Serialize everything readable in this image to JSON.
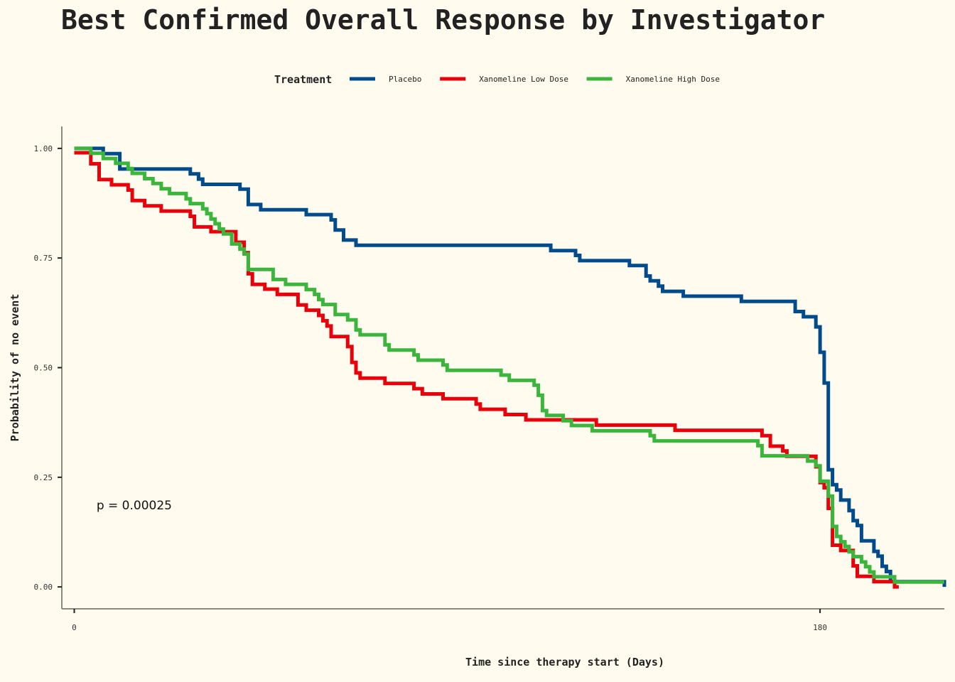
{
  "chart_data": {
    "type": "line",
    "title": "Best Confirmed Overall Response by Investigator",
    "xlabel": "Time since therapy start (Days)",
    "ylabel": "Probability of no event",
    "xlim": [
      -3,
      210
    ],
    "ylim": [
      -0.05,
      1.05
    ],
    "x_ticks": [
      0,
      180
    ],
    "y_ticks": [
      0.0,
      0.25,
      0.5,
      0.75,
      1.0
    ],
    "y_tick_labels": [
      "0.00",
      "0.25",
      "0.50",
      "0.75",
      "1.00"
    ],
    "legend": {
      "title": "Treatment",
      "position": "top"
    },
    "annotation": {
      "text": "p = 0.00025",
      "x": 4,
      "y": 0.19
    },
    "grid": false,
    "series": [
      {
        "name": "Placebo",
        "color": "#004b8c",
        "points": [
          [
            0,
            1.0
          ],
          [
            7,
            1.0
          ],
          [
            7,
            0.988
          ],
          [
            11,
            0.988
          ],
          [
            11,
            0.953
          ],
          [
            28,
            0.953
          ],
          [
            28,
            0.942
          ],
          [
            30,
            0.942
          ],
          [
            30,
            0.93
          ],
          [
            31,
            0.93
          ],
          [
            31,
            0.918
          ],
          [
            40,
            0.918
          ],
          [
            40,
            0.907
          ],
          [
            42,
            0.907
          ],
          [
            42,
            0.872
          ],
          [
            45,
            0.872
          ],
          [
            45,
            0.86
          ],
          [
            56,
            0.86
          ],
          [
            56,
            0.849
          ],
          [
            62,
            0.849
          ],
          [
            62,
            0.837
          ],
          [
            63,
            0.837
          ],
          [
            63,
            0.814
          ],
          [
            65,
            0.814
          ],
          [
            65,
            0.791
          ],
          [
            68,
            0.791
          ],
          [
            68,
            0.779
          ],
          [
            115,
            0.779
          ],
          [
            115,
            0.767
          ],
          [
            121,
            0.767
          ],
          [
            121,
            0.756
          ],
          [
            122,
            0.756
          ],
          [
            122,
            0.744
          ],
          [
            134,
            0.744
          ],
          [
            134,
            0.733
          ],
          [
            138,
            0.733
          ],
          [
            138,
            0.709
          ],
          [
            139,
            0.709
          ],
          [
            139,
            0.698
          ],
          [
            141,
            0.698
          ],
          [
            141,
            0.686
          ],
          [
            142,
            0.686
          ],
          [
            142,
            0.674
          ],
          [
            147,
            0.674
          ],
          [
            147,
            0.663
          ],
          [
            161,
            0.663
          ],
          [
            161,
            0.651
          ],
          [
            174,
            0.651
          ],
          [
            174,
            0.628
          ],
          [
            176,
            0.628
          ],
          [
            176,
            0.616
          ],
          [
            179,
            0.616
          ],
          [
            179,
            0.593
          ],
          [
            180,
            0.593
          ],
          [
            180,
            0.535
          ],
          [
            181,
            0.535
          ],
          [
            181,
            0.465
          ],
          [
            182,
            0.465
          ],
          [
            182,
            0.267
          ],
          [
            183,
            0.267
          ],
          [
            183,
            0.233
          ],
          [
            184,
            0.233
          ],
          [
            184,
            0.221
          ],
          [
            185,
            0.221
          ],
          [
            185,
            0.198
          ],
          [
            187,
            0.198
          ],
          [
            187,
            0.174
          ],
          [
            188,
            0.174
          ],
          [
            188,
            0.151
          ],
          [
            189,
            0.151
          ],
          [
            189,
            0.14
          ],
          [
            190,
            0.14
          ],
          [
            190,
            0.105
          ],
          [
            193,
            0.105
          ],
          [
            193,
            0.081
          ],
          [
            194,
            0.081
          ],
          [
            194,
            0.07
          ],
          [
            195,
            0.07
          ],
          [
            195,
            0.047
          ],
          [
            196,
            0.047
          ],
          [
            196,
            0.035
          ],
          [
            197,
            0.035
          ],
          [
            197,
            0.012
          ],
          [
            210,
            0.012
          ],
          [
            210,
            0.0
          ]
        ]
      },
      {
        "name": "Xanomeline Low Dose",
        "color": "#e8000b",
        "points": [
          [
            0,
            0.99
          ],
          [
            4,
            0.99
          ],
          [
            4,
            0.965
          ],
          [
            6,
            0.965
          ],
          [
            6,
            0.929
          ],
          [
            9,
            0.929
          ],
          [
            9,
            0.917
          ],
          [
            13,
            0.917
          ],
          [
            13,
            0.905
          ],
          [
            14,
            0.905
          ],
          [
            14,
            0.881
          ],
          [
            17,
            0.881
          ],
          [
            17,
            0.869
          ],
          [
            21,
            0.869
          ],
          [
            21,
            0.857
          ],
          [
            28,
            0.857
          ],
          [
            28,
            0.845
          ],
          [
            29,
            0.845
          ],
          [
            29,
            0.821
          ],
          [
            33,
            0.821
          ],
          [
            33,
            0.81
          ],
          [
            39,
            0.81
          ],
          [
            39,
            0.786
          ],
          [
            41,
            0.786
          ],
          [
            41,
            0.762
          ],
          [
            42,
            0.762
          ],
          [
            42,
            0.714
          ],
          [
            43,
            0.714
          ],
          [
            43,
            0.69
          ],
          [
            46,
            0.69
          ],
          [
            46,
            0.679
          ],
          [
            49,
            0.679
          ],
          [
            49,
            0.667
          ],
          [
            54,
            0.667
          ],
          [
            54,
            0.643
          ],
          [
            56,
            0.643
          ],
          [
            56,
            0.631
          ],
          [
            59,
            0.631
          ],
          [
            59,
            0.619
          ],
          [
            60,
            0.619
          ],
          [
            60,
            0.607
          ],
          [
            61,
            0.607
          ],
          [
            61,
            0.595
          ],
          [
            62,
            0.595
          ],
          [
            62,
            0.571
          ],
          [
            66,
            0.571
          ],
          [
            66,
            0.548
          ],
          [
            67,
            0.548
          ],
          [
            67,
            0.512
          ],
          [
            68,
            0.512
          ],
          [
            68,
            0.488
          ],
          [
            69,
            0.488
          ],
          [
            69,
            0.476
          ],
          [
            75,
            0.476
          ],
          [
            75,
            0.464
          ],
          [
            82,
            0.464
          ],
          [
            82,
            0.452
          ],
          [
            84,
            0.452
          ],
          [
            84,
            0.44
          ],
          [
            89,
            0.44
          ],
          [
            89,
            0.429
          ],
          [
            97,
            0.429
          ],
          [
            97,
            0.417
          ],
          [
            98,
            0.417
          ],
          [
            98,
            0.405
          ],
          [
            104,
            0.405
          ],
          [
            104,
            0.393
          ],
          [
            109,
            0.393
          ],
          [
            109,
            0.381
          ],
          [
            126,
            0.381
          ],
          [
            126,
            0.369
          ],
          [
            145,
            0.369
          ],
          [
            145,
            0.357
          ],
          [
            166,
            0.357
          ],
          [
            166,
            0.345
          ],
          [
            168,
            0.345
          ],
          [
            168,
            0.321
          ],
          [
            171,
            0.321
          ],
          [
            171,
            0.31
          ],
          [
            172,
            0.31
          ],
          [
            172,
            0.298
          ],
          [
            179,
            0.298
          ],
          [
            179,
            0.274
          ],
          [
            180,
            0.274
          ],
          [
            180,
            0.238
          ],
          [
            181,
            0.238
          ],
          [
            181,
            0.226
          ],
          [
            182,
            0.226
          ],
          [
            182,
            0.179
          ],
          [
            183,
            0.179
          ],
          [
            183,
            0.095
          ],
          [
            185,
            0.095
          ],
          [
            185,
            0.083
          ],
          [
            188,
            0.083
          ],
          [
            188,
            0.048
          ],
          [
            189,
            0.048
          ],
          [
            189,
            0.024
          ],
          [
            193,
            0.024
          ],
          [
            193,
            0.012
          ],
          [
            198,
            0.012
          ],
          [
            198,
            0.0
          ],
          [
            199,
            0.0
          ]
        ]
      },
      {
        "name": "Xanomeline High Dose",
        "color": "#3cb53c",
        "points": [
          [
            0,
            1.0
          ],
          [
            4,
            1.0
          ],
          [
            4,
            0.989
          ],
          [
            7,
            0.989
          ],
          [
            7,
            0.977
          ],
          [
            10,
            0.977
          ],
          [
            10,
            0.966
          ],
          [
            13,
            0.966
          ],
          [
            13,
            0.954
          ],
          [
            14,
            0.954
          ],
          [
            14,
            0.943
          ],
          [
            17,
            0.943
          ],
          [
            17,
            0.931
          ],
          [
            19,
            0.931
          ],
          [
            19,
            0.92
          ],
          [
            21,
            0.92
          ],
          [
            21,
            0.908
          ],
          [
            23,
            0.908
          ],
          [
            23,
            0.897
          ],
          [
            27,
            0.897
          ],
          [
            27,
            0.885
          ],
          [
            28,
            0.885
          ],
          [
            28,
            0.874
          ],
          [
            31,
            0.874
          ],
          [
            31,
            0.862
          ],
          [
            32,
            0.862
          ],
          [
            32,
            0.851
          ],
          [
            33,
            0.851
          ],
          [
            33,
            0.839
          ],
          [
            34,
            0.839
          ],
          [
            34,
            0.828
          ],
          [
            35,
            0.828
          ],
          [
            35,
            0.816
          ],
          [
            36,
            0.816
          ],
          [
            36,
            0.805
          ],
          [
            38,
            0.805
          ],
          [
            38,
            0.782
          ],
          [
            40,
            0.782
          ],
          [
            40,
            0.77
          ],
          [
            41,
            0.77
          ],
          [
            41,
            0.759
          ],
          [
            42,
            0.759
          ],
          [
            42,
            0.724
          ],
          [
            48,
            0.724
          ],
          [
            48,
            0.701
          ],
          [
            51,
            0.701
          ],
          [
            51,
            0.69
          ],
          [
            56,
            0.69
          ],
          [
            56,
            0.678
          ],
          [
            58,
            0.678
          ],
          [
            58,
            0.667
          ],
          [
            59,
            0.667
          ],
          [
            59,
            0.655
          ],
          [
            60,
            0.655
          ],
          [
            60,
            0.644
          ],
          [
            63,
            0.644
          ],
          [
            63,
            0.621
          ],
          [
            66,
            0.621
          ],
          [
            66,
            0.609
          ],
          [
            68,
            0.609
          ],
          [
            68,
            0.586
          ],
          [
            69,
            0.586
          ],
          [
            69,
            0.575
          ],
          [
            75,
            0.575
          ],
          [
            75,
            0.552
          ],
          [
            76,
            0.552
          ],
          [
            76,
            0.54
          ],
          [
            82,
            0.54
          ],
          [
            82,
            0.529
          ],
          [
            83,
            0.529
          ],
          [
            83,
            0.517
          ],
          [
            89,
            0.517
          ],
          [
            89,
            0.506
          ],
          [
            90,
            0.506
          ],
          [
            90,
            0.494
          ],
          [
            103,
            0.494
          ],
          [
            103,
            0.483
          ],
          [
            105,
            0.483
          ],
          [
            105,
            0.471
          ],
          [
            111,
            0.471
          ],
          [
            111,
            0.46
          ],
          [
            112,
            0.46
          ],
          [
            112,
            0.437
          ],
          [
            113,
            0.437
          ],
          [
            113,
            0.402
          ],
          [
            114,
            0.402
          ],
          [
            114,
            0.391
          ],
          [
            118,
            0.391
          ],
          [
            118,
            0.379
          ],
          [
            120,
            0.379
          ],
          [
            120,
            0.368
          ],
          [
            125,
            0.368
          ],
          [
            125,
            0.356
          ],
          [
            139,
            0.356
          ],
          [
            139,
            0.345
          ],
          [
            140,
            0.345
          ],
          [
            140,
            0.333
          ],
          [
            165,
            0.333
          ],
          [
            165,
            0.322
          ],
          [
            166,
            0.322
          ],
          [
            166,
            0.299
          ],
          [
            177,
            0.299
          ],
          [
            177,
            0.287
          ],
          [
            179,
            0.287
          ],
          [
            179,
            0.276
          ],
          [
            180,
            0.276
          ],
          [
            180,
            0.241
          ],
          [
            182,
            0.241
          ],
          [
            182,
            0.207
          ],
          [
            183,
            0.207
          ],
          [
            183,
            0.138
          ],
          [
            184,
            0.138
          ],
          [
            184,
            0.115
          ],
          [
            185,
            0.115
          ],
          [
            185,
            0.103
          ],
          [
            186,
            0.103
          ],
          [
            186,
            0.092
          ],
          [
            187,
            0.092
          ],
          [
            187,
            0.08
          ],
          [
            188,
            0.08
          ],
          [
            188,
            0.069
          ],
          [
            190,
            0.069
          ],
          [
            190,
            0.057
          ],
          [
            191,
            0.057
          ],
          [
            191,
            0.046
          ],
          [
            192,
            0.046
          ],
          [
            192,
            0.034
          ],
          [
            193,
            0.034
          ],
          [
            193,
            0.023
          ],
          [
            198,
            0.023
          ],
          [
            198,
            0.011
          ],
          [
            210,
            0.011
          ]
        ]
      }
    ]
  }
}
